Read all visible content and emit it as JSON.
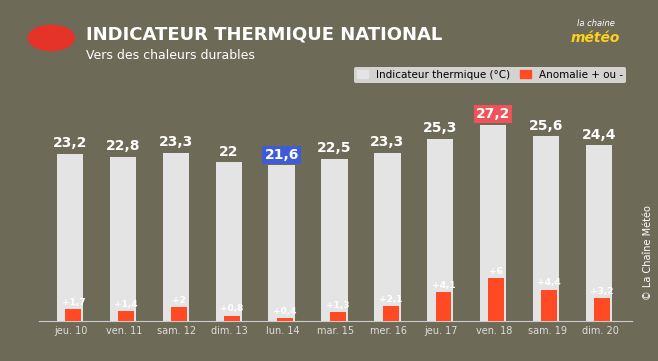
{
  "chart_data": {
    "type": "bar",
    "title": "INDICATEUR THERMIQUE NATIONAL",
    "subtitle": "Vers des chaleurs durables",
    "logo": [
      "la chaine",
      "météo"
    ],
    "source": "© La Chaîne Météo",
    "categories": [
      "jeu. 10",
      "ven. 11",
      "sam. 12",
      "dim. 13",
      "lun. 14",
      "mar. 15",
      "mer. 16",
      "jeu. 17",
      "ven. 18",
      "sam. 19",
      "dim. 20"
    ],
    "series": [
      {
        "name": "Indicateur thermique (°C)",
        "color": "#e4e4e4",
        "values": [
          23.2,
          22.8,
          23.3,
          22,
          21.6,
          22.5,
          23.3,
          25.3,
          27.2,
          25.6,
          24.4
        ],
        "value_labels": [
          "23,2",
          "22,8",
          "23,3",
          "22",
          "21,6",
          "22,5",
          "23,3",
          "25,3",
          "27,2",
          "25,6",
          "24,4"
        ]
      },
      {
        "name": "Anomalie + ou -",
        "color": "#ff4a24",
        "values": [
          1.7,
          1.4,
          2,
          0.8,
          0.4,
          1.3,
          2.1,
          4.1,
          6,
          4.4,
          3.2
        ],
        "value_labels": [
          "+1,7",
          "+1,4",
          "+2",
          "+0,8",
          "+0,4",
          "+1,3",
          "+2,1",
          "+4,1",
          "+6",
          "+4,4",
          "+3,2"
        ]
      }
    ],
    "ylim": [
      0,
      30
    ],
    "data_labels": true,
    "tick_labels": "x",
    "legend": "upper right"
  }
}
